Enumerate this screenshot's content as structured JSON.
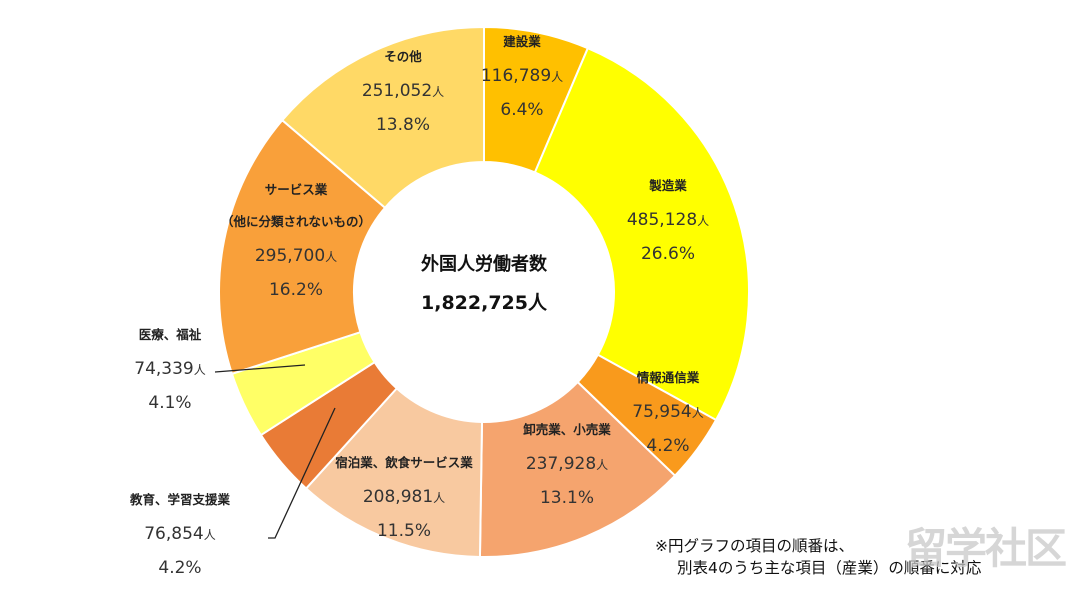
{
  "chart_data": {
    "type": "pie",
    "donut": true,
    "start": "top",
    "direction": "clockwise",
    "center_title": "外国人労働者数",
    "center_total": "1,822,725人",
    "total": 1822725,
    "slices": [
      {
        "label": "建設業",
        "value": 116789,
        "value_text": "116,789",
        "unit": "人",
        "percent": 6.4,
        "percent_text": "6.4%",
        "color": "#FFC000"
      },
      {
        "label": "製造業",
        "value": 485128,
        "value_text": "485,128",
        "unit": "人",
        "percent": 26.6,
        "percent_text": "26.6%",
        "color": "#FFFF00"
      },
      {
        "label": "情報通信業",
        "value": 75954,
        "value_text": "75,954",
        "unit": "人",
        "percent": 4.2,
        "percent_text": "4.2%",
        "color": "#F99A1C"
      },
      {
        "label": "卸売業、小売業",
        "value": 237928,
        "value_text": "237,928",
        "unit": "人",
        "percent": 13.1,
        "percent_text": "13.1%",
        "color": "#F5A46E"
      },
      {
        "label": "宿泊業、飲食サービス業",
        "value": 208981,
        "value_text": "208,981",
        "unit": "人",
        "percent": 11.5,
        "percent_text": "11.5%",
        "color": "#F8C9A0"
      },
      {
        "label": "教育、学習支援業",
        "value": 76854,
        "value_text": "76,854",
        "unit": "人",
        "percent": 4.2,
        "percent_text": "4.2%",
        "color": "#E97B36"
      },
      {
        "label": "医療、福祉",
        "value": 74339,
        "value_text": "74,339",
        "unit": "人",
        "percent": 4.1,
        "percent_text": "4.1%",
        "color": "#FFFF66"
      },
      {
        "label": "サービス業",
        "label2": "（他に分類されないもの）",
        "value": 295700,
        "value_text": "295,700",
        "unit": "人",
        "percent": 16.2,
        "percent_text": "16.2%",
        "color": "#F9A03A"
      },
      {
        "label": "その他",
        "value": 251052,
        "value_text": "251,052",
        "unit": "人",
        "percent": 13.8,
        "percent_text": "13.8%",
        "color": "#FFD966"
      }
    ]
  },
  "note": {
    "line1": "※円グラフの項目の順番は、",
    "line2": "別表4のうち主な項目（産業）の順番に対応"
  },
  "watermark": "留学社区"
}
